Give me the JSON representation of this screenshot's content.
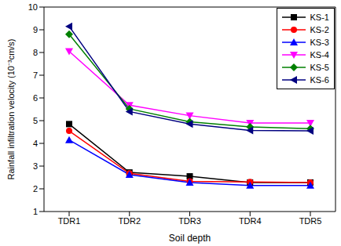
{
  "chart_data": {
    "type": "line",
    "x_label": "Soil depth",
    "y_label": "Rainfall infiltration velocity (10⁻³cm/s)",
    "categories": [
      "TDR1",
      "TDR2",
      "TDR3",
      "TDR4",
      "TDR5"
    ],
    "ylim": [
      1,
      10
    ],
    "yticks": [
      1,
      2,
      3,
      4,
      5,
      6,
      7,
      8,
      9,
      10
    ],
    "grid": false,
    "legend": "upper right",
    "series": [
      {
        "name": "KS-1",
        "color": "#000000",
        "marker": "square",
        "values": [
          4.85,
          2.72,
          2.55,
          2.28,
          2.28
        ]
      },
      {
        "name": "KS-2",
        "color": "#ff0000",
        "marker": "circle",
        "values": [
          4.55,
          2.68,
          2.33,
          2.3,
          2.28
        ]
      },
      {
        "name": "KS-3",
        "color": "#0000ff",
        "marker": "triangle-up",
        "values": [
          4.15,
          2.62,
          2.28,
          2.15,
          2.15
        ]
      },
      {
        "name": "KS-4",
        "color": "#ff00ff",
        "marker": "triangle-down",
        "values": [
          8.05,
          5.68,
          5.22,
          4.9,
          4.9
        ]
      },
      {
        "name": "KS-5",
        "color": "#008000",
        "marker": "diamond",
        "values": [
          8.8,
          5.52,
          4.95,
          4.72,
          4.65
        ]
      },
      {
        "name": "KS-6",
        "color": "#000080",
        "marker": "triangle-left",
        "values": [
          9.15,
          5.4,
          4.85,
          4.57,
          4.55
        ]
      }
    ]
  }
}
